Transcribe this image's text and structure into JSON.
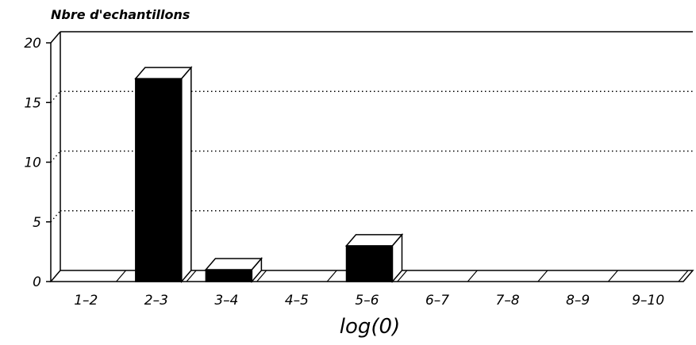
{
  "chart_data": {
    "type": "bar",
    "title": "",
    "ylabel": "Nbre d'echantillons",
    "xlabel": "log(0)",
    "categories": [
      "1-2",
      "2-3",
      "3-4",
      "4-5",
      "5-6",
      "6-7",
      "7-8",
      "8-9",
      "9-10"
    ],
    "values": [
      0,
      17,
      1,
      0,
      3,
      0,
      0,
      0,
      0
    ],
    "ylim": [
      0,
      20
    ],
    "yticks": [
      "0",
      "5",
      "10",
      "15",
      "20"
    ],
    "grid": "horizontal-dotted",
    "style": "3d",
    "colors": {
      "bar_front": "#000000",
      "bar_side": "#ffffff",
      "stroke": "#000000",
      "background": "#ffffff"
    }
  }
}
